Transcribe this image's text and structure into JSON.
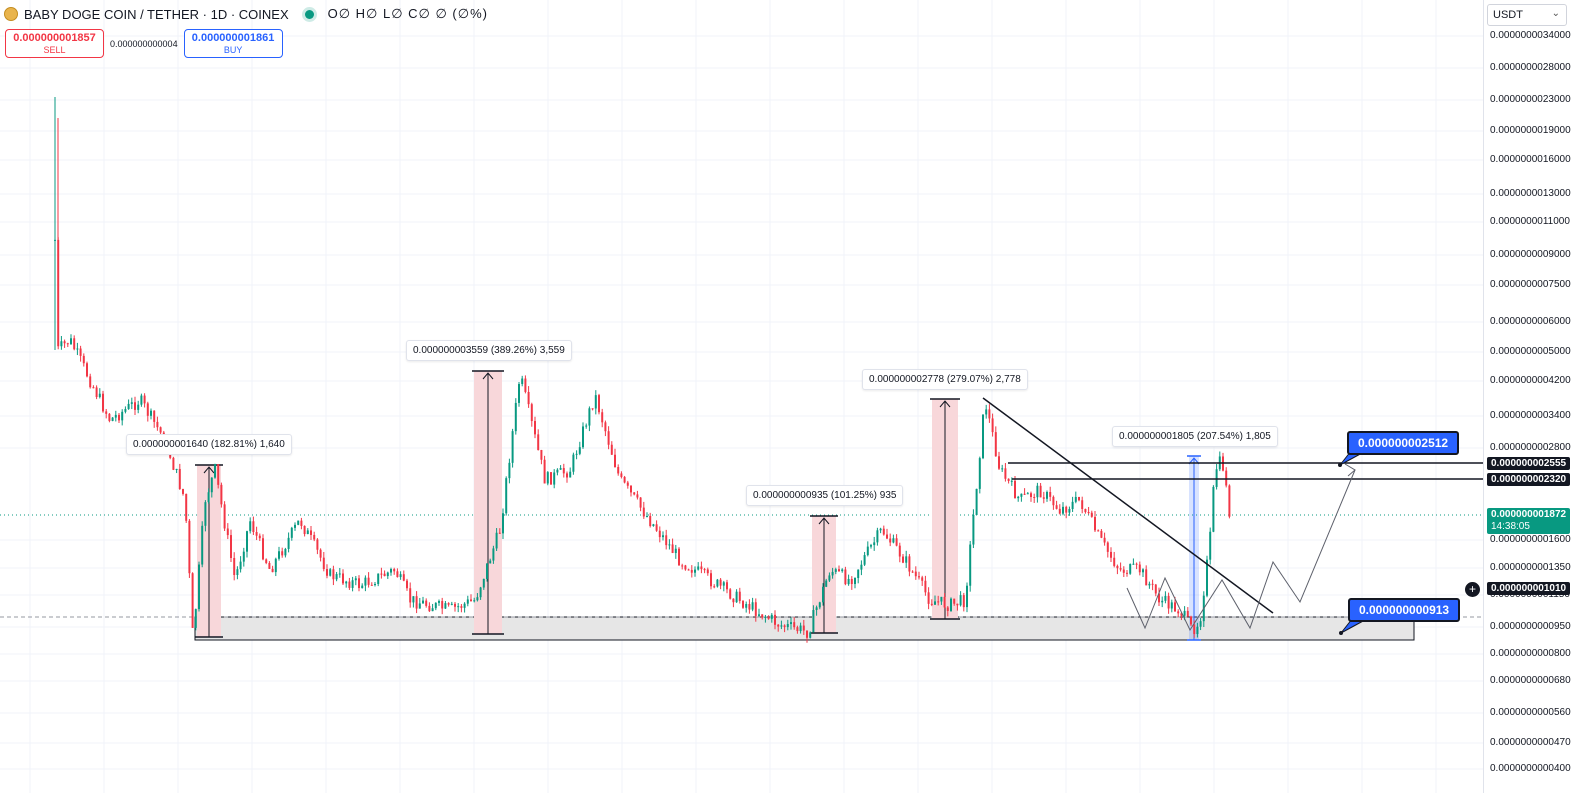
{
  "header": {
    "symbol_title": "BABY DOGE COIN / TETHER · 1D · COINEX",
    "ohlc_text": "O∅ H∅ L∅ C∅ ∅ (∅%)"
  },
  "trade": {
    "sell_price": "0.000000001857",
    "sell_label": "SELL",
    "spread": "0.000000000004",
    "buy_price": "0.000000001861",
    "buy_label": "BUY"
  },
  "currency": {
    "selected": "USDT"
  },
  "price_axis": {
    "ticks": [
      "0.0000000034000",
      "0.0000000028000",
      "0.0000000023000",
      "0.0000000019000",
      "0.0000000016000",
      "0.0000000013000",
      "0.0000000011000",
      "0.0000000009000",
      "0.0000000007500",
      "0.0000000006000",
      "0.0000000005000",
      "0.0000000004200",
      "0.0000000003400",
      "0.0000000002800",
      "0.0000000001600",
      "0.0000000001350",
      "0.0000000001150",
      "0.0000000000950",
      "0.0000000000800",
      "0.0000000000680",
      "0.0000000000560",
      "0.0000000000470",
      "0.0000000000400"
    ],
    "tag_upper": "0.000000002555",
    "tag_lower": "0.000000002320",
    "current_price": "0.000000001872",
    "countdown": "14:38:05",
    "support_tag": "0.000000001010"
  },
  "measurements": [
    {
      "text": "0.000000001640 (182.81%) 1,640"
    },
    {
      "text": "0.000000003559 (389.26%) 3,559"
    },
    {
      "text": "0.000000000935 (101.25%) 935"
    },
    {
      "text": "0.000000002778 (279.07%) 2,778"
    },
    {
      "text": "0.000000001805 (207.54%) 1,805"
    }
  ],
  "callouts": {
    "target": "0.000000002512",
    "support": "0.000000000913"
  },
  "colors": {
    "up": "#089981",
    "down": "#f23645",
    "accent": "#2962ff",
    "measure_fill": "#f8d7da"
  }
}
